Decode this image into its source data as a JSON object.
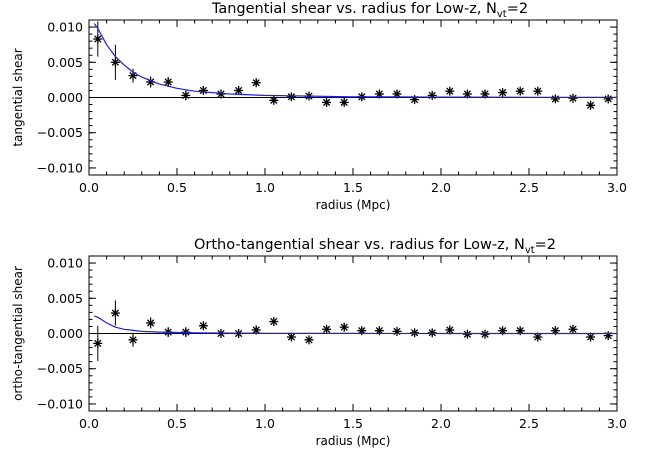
{
  "chart_data": [
    {
      "type": "scatter",
      "title": "Tangential shear vs. radius for Low-z, N",
      "title_sub": "vt",
      "title_tail": "=2",
      "xlabel": "radius (Mpc)",
      "ylabel": "tangential shear",
      "xlim": [
        0.0,
        3.0
      ],
      "ylim": [
        -0.011,
        0.011
      ],
      "xticks": [
        0.0,
        0.5,
        1.0,
        1.5,
        2.0,
        2.5,
        3.0
      ],
      "xtick_labels": [
        "0.0",
        "0.5",
        "1.0",
        "1.5",
        "2.0",
        "2.5",
        "3.0"
      ],
      "yticks": [
        -0.01,
        -0.005,
        0.0,
        0.005,
        0.01
      ],
      "ytick_labels": [
        "−0.010",
        "−0.005",
        "0.000",
        "0.005",
        "0.010"
      ],
      "zero_line": true,
      "grid": false,
      "series": [
        {
          "kind": "points",
          "x": [
            0.05,
            0.15,
            0.25,
            0.35,
            0.45,
            0.55,
            0.65,
            0.75,
            0.85,
            0.95,
            1.05,
            1.15,
            1.25,
            1.35,
            1.45,
            1.55,
            1.65,
            1.75,
            1.85,
            1.95,
            2.05,
            2.15,
            2.25,
            2.35,
            2.45,
            2.55,
            2.65,
            2.75,
            2.85,
            2.95
          ],
          "y": [
            0.0083,
            0.005,
            0.0031,
            0.0022,
            0.0022,
            0.0003,
            0.001,
            0.0005,
            0.001,
            0.0021,
            -0.0004,
            0.0001,
            0.0002,
            -0.0007,
            -0.0007,
            0.0001,
            0.0005,
            0.0005,
            -0.0003,
            0.0003,
            0.0009,
            0.0005,
            0.0005,
            0.0007,
            0.0009,
            0.0009,
            -0.0002,
            -0.0001,
            -0.0011,
            -0.0002
          ],
          "yerr": [
            0.0025,
            0.0025,
            0.001,
            0.0008,
            0.0007,
            0.0007,
            0.0006,
            0.0005,
            0.0005,
            0.0005,
            0.0005,
            0.0004,
            0.0004,
            0.0004,
            0.0004,
            0.0004,
            0.0004,
            0.0004,
            0.0004,
            0.0004,
            0.0004,
            0.0004,
            0.0004,
            0.0004,
            0.0004,
            0.0004,
            0.0004,
            0.0004,
            0.0004,
            0.0004
          ]
        },
        {
          "kind": "model",
          "color": "#2020d0",
          "x": [
            0.03,
            0.05,
            0.1,
            0.15,
            0.2,
            0.25,
            0.3,
            0.4,
            0.5,
            0.6,
            0.8,
            1.0,
            1.5,
            2.0,
            2.5,
            3.0
          ],
          "y": [
            0.0105,
            0.0098,
            0.0075,
            0.0058,
            0.0046,
            0.0036,
            0.0029,
            0.0019,
            0.0013,
            0.0009,
            0.0005,
            0.0003,
            0.0001,
            5e-05,
            3e-05,
            2e-05
          ]
        }
      ]
    },
    {
      "type": "scatter",
      "title": "Ortho-tangential shear vs. radius for Low-z, N",
      "title_sub": "vt",
      "title_tail": "=2",
      "xlabel": "radius (Mpc)",
      "ylabel": "ortho-tangential shear",
      "xlim": [
        0.0,
        3.0
      ],
      "ylim": [
        -0.011,
        0.011
      ],
      "xticks": [
        0.0,
        0.5,
        1.0,
        1.5,
        2.0,
        2.5,
        3.0
      ],
      "xtick_labels": [
        "0.0",
        "0.5",
        "1.0",
        "1.5",
        "2.0",
        "2.5",
        "3.0"
      ],
      "yticks": [
        -0.01,
        -0.005,
        0.0,
        0.005,
        0.01
      ],
      "ytick_labels": [
        "−0.010",
        "−0.005",
        "0.000",
        "0.005",
        "0.010"
      ],
      "zero_line": true,
      "grid": false,
      "series": [
        {
          "kind": "points",
          "x": [
            0.05,
            0.15,
            0.25,
            0.35,
            0.45,
            0.55,
            0.65,
            0.75,
            0.85,
            0.95,
            1.05,
            1.15,
            1.25,
            1.35,
            1.45,
            1.55,
            1.65,
            1.75,
            1.85,
            1.95,
            2.05,
            2.15,
            2.25,
            2.35,
            2.45,
            2.55,
            2.65,
            2.75,
            2.85,
            2.95
          ],
          "y": [
            -0.0014,
            0.0029,
            -0.0009,
            0.0015,
            0.0002,
            0.0002,
            0.0011,
            0.0,
            0.0,
            0.0005,
            0.0017,
            -0.0005,
            -0.0009,
            0.0006,
            0.0009,
            0.0004,
            0.0004,
            0.0003,
            0.0001,
            0.0001,
            0.0005,
            -0.0001,
            -0.0001,
            0.0004,
            0.0004,
            -0.0005,
            0.0004,
            0.0006,
            -0.0005,
            -0.0003
          ],
          "yerr": [
            0.0025,
            0.0018,
            0.001,
            0.0008,
            0.0007,
            0.0007,
            0.0006,
            0.0005,
            0.0005,
            0.0005,
            0.0005,
            0.0004,
            0.0004,
            0.0004,
            0.0004,
            0.0004,
            0.0004,
            0.0004,
            0.0004,
            0.0004,
            0.0004,
            0.0004,
            0.0004,
            0.0004,
            0.0004,
            0.0004,
            0.0004,
            0.0004,
            0.0004,
            0.0004
          ]
        },
        {
          "kind": "model",
          "color": "#2020d0",
          "x": [
            0.03,
            0.05,
            0.1,
            0.15,
            0.2,
            0.3,
            0.4,
            0.6,
            0.8,
            1.0,
            1.5,
            2.0,
            2.5,
            3.0
          ],
          "y": [
            0.0025,
            0.0023,
            0.0015,
            0.0009,
            0.0006,
            0.0003,
            0.0002,
            0.0001,
            5e-05,
            3e-05,
            1e-05,
            0.0,
            0.0,
            0.0
          ]
        }
      ]
    }
  ]
}
